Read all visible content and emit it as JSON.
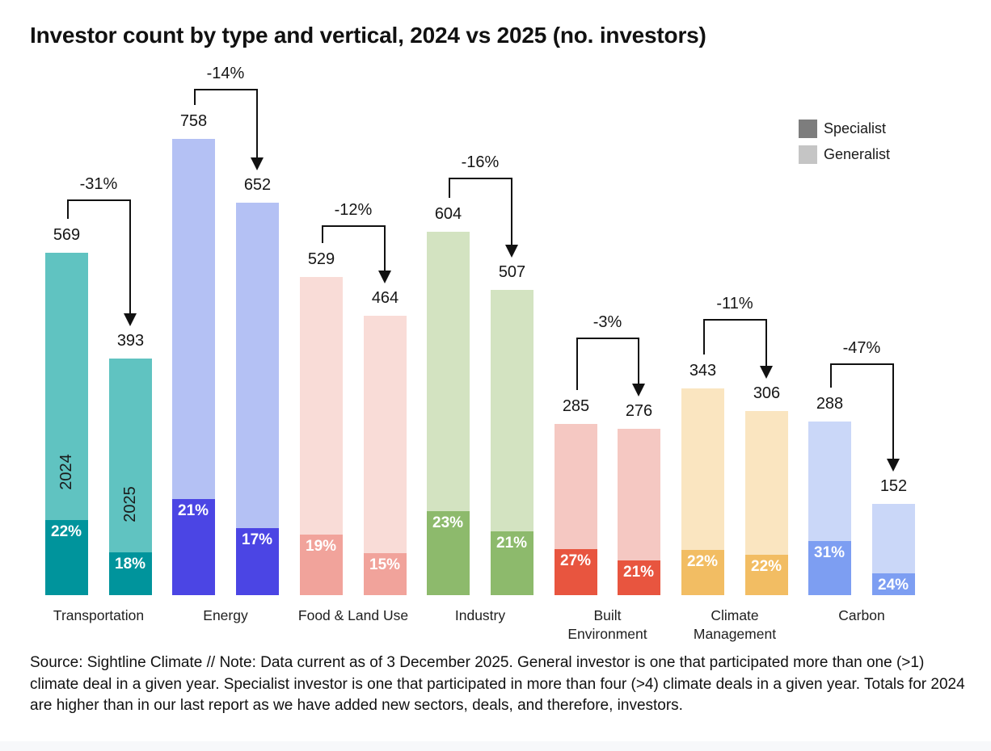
{
  "title": "Investor count by type and vertical, 2024 vs 2025 (no. investors)",
  "legend": {
    "items": [
      {
        "label": "Specialist",
        "color": "#7d7d7d"
      },
      {
        "label": "Generalist",
        "color": "#c5c5c5"
      }
    ]
  },
  "footer": "Source: Sightline Climate  //  Note: Data current as of 3 December 2025. General investor is one that participated more than one (>1) climate deal in a given year. Specialist investor is one that participated in more than four (>4) climate deals in a given year. Totals for 2024 are higher than in our last report as we have added new sectors, deals, and therefore, investors.",
  "chart_data": {
    "type": "bar",
    "title": "Investor count by type and vertical, 2024 vs 2025 (no. investors)",
    "unit": "no. investors",
    "years": [
      "2024",
      "2025"
    ],
    "ylim": [
      0,
      800
    ],
    "axes_hidden": true,
    "legend_position": "top-right",
    "stacking": "each bar split: Specialist (dark, bottom, % labeled) + Generalist (light, top)",
    "groups": [
      {
        "category": "Transportation",
        "change_label": "-31%",
        "colors": {
          "generalist": "#60c3c1",
          "specialist": "#00949c"
        },
        "bars": [
          {
            "year": "2024",
            "total": 569,
            "specialist_pct": 22,
            "specialist_label": "22%",
            "year_label": "2024"
          },
          {
            "year": "2025",
            "total": 393,
            "specialist_pct": 18,
            "specialist_label": "18%",
            "year_label": "2025"
          }
        ]
      },
      {
        "category": "Energy",
        "change_label": "-14%",
        "colors": {
          "generalist": "#b4c1f4",
          "specialist": "#4b45e4"
        },
        "bars": [
          {
            "year": "2024",
            "total": 758,
            "specialist_pct": 21,
            "specialist_label": "21%"
          },
          {
            "year": "2025",
            "total": 652,
            "specialist_pct": 17,
            "specialist_label": "17%"
          }
        ]
      },
      {
        "category": "Food & Land Use",
        "change_label": "-12%",
        "colors": {
          "generalist": "#f9dcd7",
          "specialist": "#f1a39b"
        },
        "bars": [
          {
            "year": "2024",
            "total": 529,
            "specialist_pct": 19,
            "specialist_label": "19%"
          },
          {
            "year": "2025",
            "total": 464,
            "specialist_pct": 15,
            "specialist_label": "15%"
          }
        ]
      },
      {
        "category": "Industry",
        "change_label": "-16%",
        "colors": {
          "generalist": "#d3e3c1",
          "specialist": "#8dba6c"
        },
        "bars": [
          {
            "year": "2024",
            "total": 604,
            "specialist_pct": 23,
            "specialist_label": "23%"
          },
          {
            "year": "2025",
            "total": 507,
            "specialist_pct": 21,
            "specialist_label": "21%"
          }
        ]
      },
      {
        "category": "Built Environment",
        "change_label": "-3%",
        "colors": {
          "generalist": "#f5c8c2",
          "specialist": "#e8553f"
        },
        "bars": [
          {
            "year": "2024",
            "total": 285,
            "specialist_pct": 27,
            "specialist_label": "27%"
          },
          {
            "year": "2025",
            "total": 276,
            "specialist_pct": 21,
            "specialist_label": "21%"
          }
        ]
      },
      {
        "category": "Climate Management",
        "change_label": "-11%",
        "colors": {
          "generalist": "#fae5c0",
          "specialist": "#f2bd63"
        },
        "bars": [
          {
            "year": "2024",
            "total": 343,
            "specialist_pct": 22,
            "specialist_label": "22%"
          },
          {
            "year": "2025",
            "total": 306,
            "specialist_pct": 22,
            "specialist_label": "22%"
          }
        ]
      },
      {
        "category": "Carbon",
        "change_label": "-47%",
        "colors": {
          "generalist": "#cad7f8",
          "specialist": "#7d9ef2"
        },
        "bars": [
          {
            "year": "2024",
            "total": 288,
            "specialist_pct": 31,
            "specialist_label": "31%"
          },
          {
            "year": "2025",
            "total": 152,
            "specialist_pct": 24,
            "specialist_label": "24%"
          }
        ]
      }
    ]
  }
}
